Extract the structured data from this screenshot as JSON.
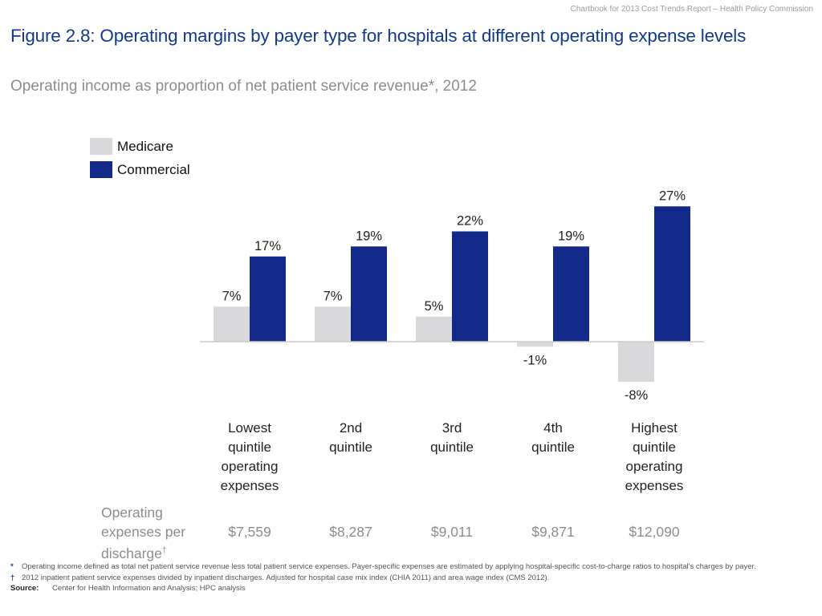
{
  "header_note": "Chartbook for 2013 Cost Trends Report – Health Policy Commission",
  "title": "Figure 2.8: Operating margins by payer type for hospitals at different operating expense levels",
  "subtitle": "Operating income as proportion of net patient service revenue*, 2012",
  "colors": {
    "medicare": "#d9d9dc",
    "commercial": "#12298a",
    "title": "#123a8c",
    "axis": "#c8c8c8"
  },
  "chart_data": {
    "type": "bar",
    "title": "Operating income as proportion of net patient service revenue*, 2012",
    "categories": [
      [
        "Lowest",
        "quintile",
        "operating",
        "expenses"
      ],
      [
        "2nd",
        "quintile"
      ],
      [
        "3rd",
        "quintile"
      ],
      [
        "4th",
        "quintile"
      ],
      [
        "Highest",
        "quintile",
        "operating",
        "expenses"
      ]
    ],
    "series": [
      {
        "name": "Medicare",
        "values": [
          7,
          7,
          5,
          -1,
          -8
        ],
        "labels": [
          "7%",
          "7%",
          "5%",
          "-1%",
          "-8%"
        ]
      },
      {
        "name": "Commercial",
        "values": [
          17,
          19,
          22,
          19,
          27
        ],
        "labels": [
          "17%",
          "19%",
          "22%",
          "19%",
          "27%"
        ]
      }
    ],
    "ylim": [
      -8,
      27
    ],
    "unit": "%",
    "legend": "top-left",
    "grid": false
  },
  "expense_row": {
    "label": "Operating expenses per discharge",
    "label_mark": "†",
    "values": [
      "$7,559",
      "$8,287",
      "$9,011",
      "$9,871",
      "$12,090"
    ]
  },
  "footnotes": {
    "star_mark": "*",
    "star_text": "Operating income defined as total net patient service revenue less total patient service expenses. Payer-specific expenses are estimated by applying hospital-specific cost-to-charge ratios to hospital's charges by payer.",
    "dagger_mark": "†",
    "dagger_text": "2012 inpatient patient service expenses divided by inpatient discharges. Adjusted for hospital case mix index (CHIA 2011) and area wage index (CMS 2012).",
    "source_label": "Source:",
    "source_text": "Center for Health Information and Analysis; HPC analysis"
  }
}
